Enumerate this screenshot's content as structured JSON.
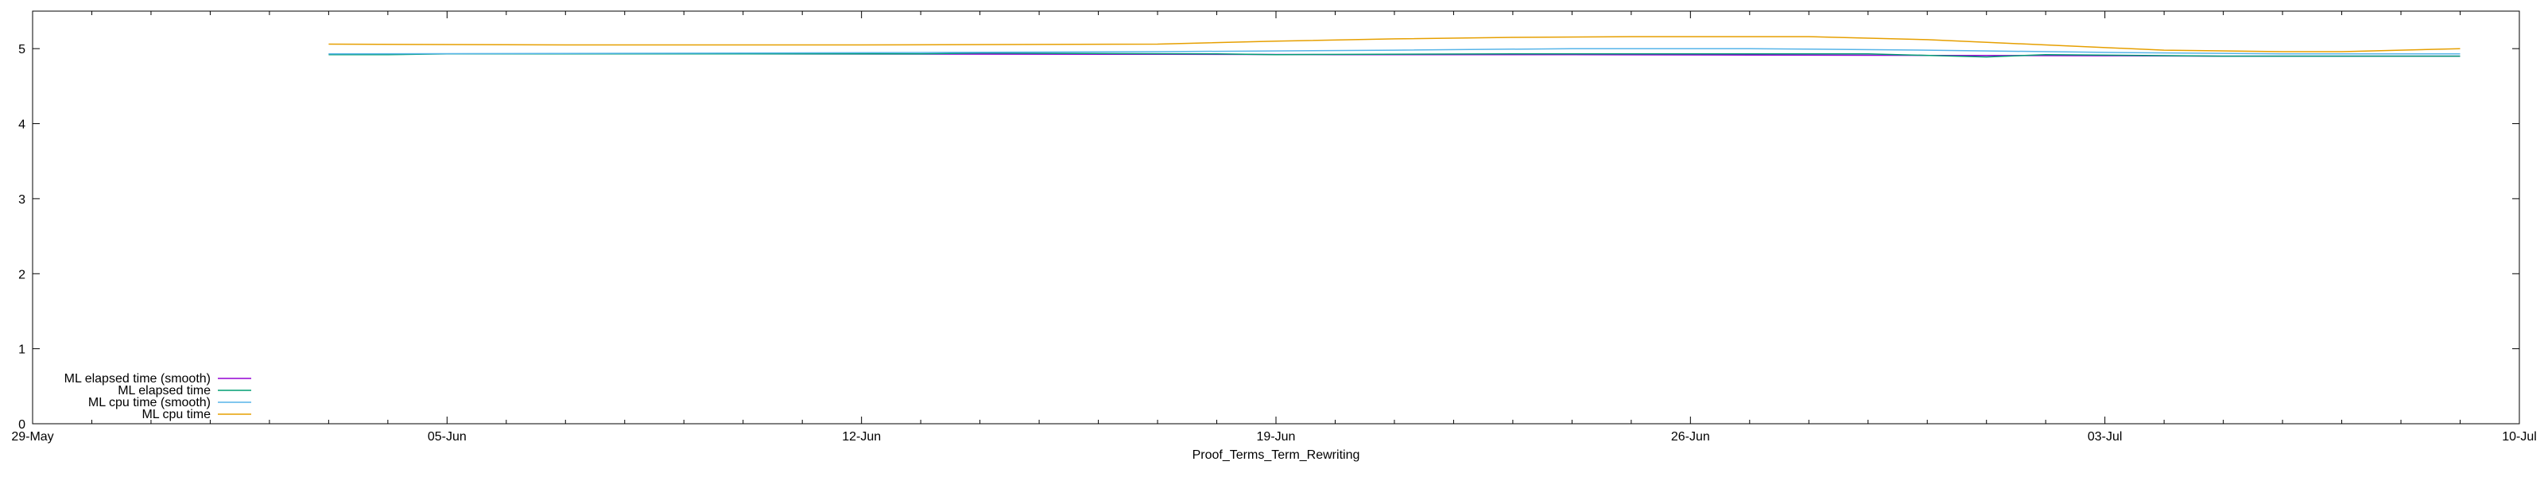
{
  "chart_data": {
    "type": "line",
    "title": "",
    "xlabel": "Proof_Terms_Term_Rewriting",
    "ylabel": "",
    "x_axis_type": "date",
    "xlim": [
      "2024-05-29",
      "2024-07-10"
    ],
    "ylim": [
      0,
      5.5
    ],
    "x_ticks": [
      {
        "date": "2024-05-29",
        "label": "29-May"
      },
      {
        "date": "2024-06-05",
        "label": "05-Jun"
      },
      {
        "date": "2024-06-12",
        "label": "12-Jun"
      },
      {
        "date": "2024-06-19",
        "label": "19-Jun"
      },
      {
        "date": "2024-06-26",
        "label": "26-Jun"
      },
      {
        "date": "2024-07-03",
        "label": "03-Jul"
      },
      {
        "date": "2024-07-10",
        "label": "10-Jul"
      }
    ],
    "y_ticks": [
      0,
      1,
      2,
      3,
      4,
      5
    ],
    "grid": false,
    "legend_position": "bottom-left",
    "series": [
      {
        "name": "ML elapsed time (smooth)",
        "color": "#9400d3",
        "points": [
          [
            "2024-06-03",
            4.93
          ],
          [
            "2024-06-10",
            4.93
          ],
          [
            "2024-06-17",
            4.925
          ],
          [
            "2024-06-20",
            4.92
          ],
          [
            "2024-06-24",
            4.92
          ],
          [
            "2024-06-27",
            4.915
          ],
          [
            "2024-06-30",
            4.91
          ],
          [
            "2024-07-03",
            4.905
          ],
          [
            "2024-07-05",
            4.9
          ],
          [
            "2024-07-08",
            4.9
          ],
          [
            "2024-07-09",
            4.9
          ]
        ]
      },
      {
        "name": "ML elapsed time",
        "color": "#009e73",
        "points": [
          [
            "2024-06-03",
            4.92
          ],
          [
            "2024-06-04",
            4.92
          ],
          [
            "2024-06-05",
            4.93
          ],
          [
            "2024-06-08",
            4.93
          ],
          [
            "2024-06-13",
            4.93
          ],
          [
            "2024-06-14",
            4.94
          ],
          [
            "2024-06-18",
            4.93
          ],
          [
            "2024-06-19",
            4.92
          ],
          [
            "2024-06-23",
            4.93
          ],
          [
            "2024-06-24",
            4.93
          ],
          [
            "2024-06-29",
            4.93
          ],
          [
            "2024-07-01",
            4.89
          ],
          [
            "2024-07-02",
            4.92
          ],
          [
            "2024-07-05",
            4.9
          ],
          [
            "2024-07-09",
            4.9
          ]
        ]
      },
      {
        "name": "ML cpu time (smooth)",
        "color": "#56b4e9",
        "points": [
          [
            "2024-06-03",
            4.93
          ],
          [
            "2024-06-10",
            4.94
          ],
          [
            "2024-06-17",
            4.96
          ],
          [
            "2024-06-21",
            4.98
          ],
          [
            "2024-06-24",
            5.0
          ],
          [
            "2024-06-27",
            5.0
          ],
          [
            "2024-06-30",
            4.98
          ],
          [
            "2024-07-03",
            4.95
          ],
          [
            "2024-07-06",
            4.93
          ],
          [
            "2024-07-09",
            4.93
          ]
        ]
      },
      {
        "name": "ML cpu time",
        "color": "#e69f00",
        "points": [
          [
            "2024-06-03",
            5.06
          ],
          [
            "2024-06-07",
            5.05
          ],
          [
            "2024-06-12",
            5.05
          ],
          [
            "2024-06-17",
            5.06
          ],
          [
            "2024-06-19",
            5.1
          ],
          [
            "2024-06-21",
            5.13
          ],
          [
            "2024-06-23",
            5.15
          ],
          [
            "2024-06-25",
            5.16
          ],
          [
            "2024-06-28",
            5.16
          ],
          [
            "2024-06-30",
            5.12
          ],
          [
            "2024-07-02",
            5.05
          ],
          [
            "2024-07-04",
            4.98
          ],
          [
            "2024-07-06",
            4.96
          ],
          [
            "2024-07-07",
            4.96
          ],
          [
            "2024-07-09",
            5.0
          ]
        ]
      }
    ]
  }
}
